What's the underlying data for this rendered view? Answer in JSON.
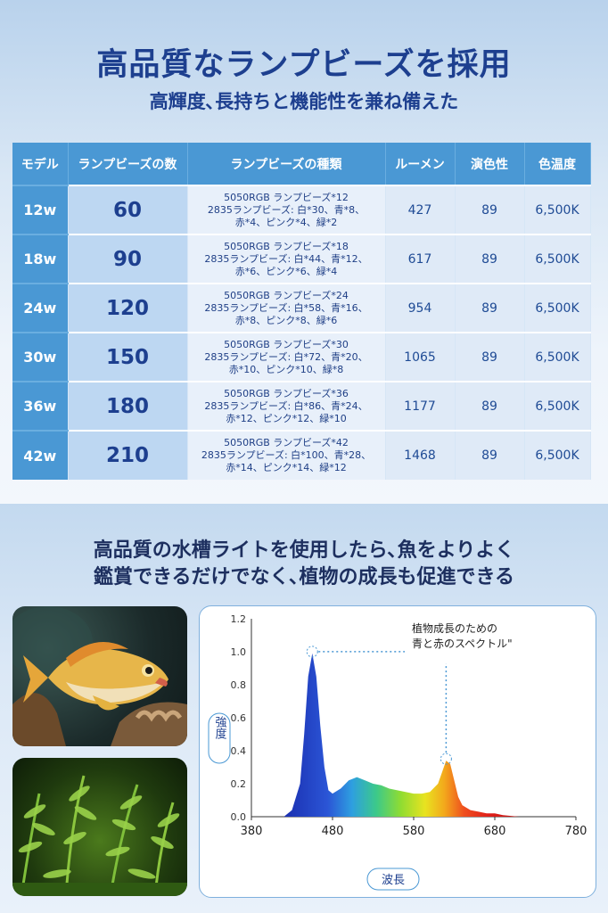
{
  "header": {
    "title": "高品質なランプビーズを採用",
    "subtitle": "高輝度､長持ちと機能性を兼ね備えた"
  },
  "table": {
    "headers": [
      "モデル",
      "ランプビーズの数",
      "ランプビーズの種類",
      "ルーメン",
      "演色性",
      "色温度"
    ],
    "rows": [
      {
        "model": "12w",
        "count": "60",
        "types": [
          "5050RGB ランプビーズ*12",
          "2835ランプビーズ: 白*30、青*8、",
          "赤*4、ピンク*4、緑*2"
        ],
        "lumen": "427",
        "cri": "89",
        "temp": "6,500K"
      },
      {
        "model": "18w",
        "count": "90",
        "types": [
          "5050RGB ランプビーズ*18",
          "2835ランプビーズ: 白*44、青*12、",
          "赤*6、ピンク*6、緑*4"
        ],
        "lumen": "617",
        "cri": "89",
        "temp": "6,500K"
      },
      {
        "model": "24w",
        "count": "120",
        "types": [
          "5050RGB ランプビーズ*24",
          "2835ランプビーズ: 白*58、青*16、",
          "赤*8、ピンク*8、緑*6"
        ],
        "lumen": "954",
        "cri": "89",
        "temp": "6,500K"
      },
      {
        "model": "30w",
        "count": "150",
        "types": [
          "5050RGB ランプビーズ*30",
          "2835ランプビーズ: 白*72、青*20、",
          "赤*10、ピンク*10、緑*8"
        ],
        "lumen": "1065",
        "cri": "89",
        "temp": "6,500K"
      },
      {
        "model": "36w",
        "count": "180",
        "types": [
          "5050RGB ランプビーズ*36",
          "2835ランプビーズ: 白*86、青*24、",
          "赤*12、ピンク*12、緑*10"
        ],
        "lumen": "1177",
        "cri": "89",
        "temp": "6,500K"
      },
      {
        "model": "42w",
        "count": "210",
        "types": [
          "5050RGB ランプビーズ*42",
          "2835ランプビーズ: 白*100、青*28、",
          "赤*14、ピンク*14、緑*12"
        ],
        "lumen": "1468",
        "cri": "89",
        "temp": "6,500K"
      }
    ]
  },
  "bottom": {
    "line1": "高品質の水槽ライトを使用したら､魚をよりよく",
    "line2": "鑑賞できるだけでなく､植物の成長も促進できる"
  },
  "colors": {
    "accent": "#4a98d4",
    "title": "#1d3f8f"
  },
  "chart_data": {
    "type": "area",
    "xlabel": "波長",
    "ylabel": "強度",
    "xlim": [
      380,
      780
    ],
    "ylim": [
      0,
      1.2
    ],
    "xticks": [
      "380",
      "480",
      "580",
      "680",
      "780"
    ],
    "yticks": [
      "0.0",
      "0.2",
      "0.4",
      "0.6",
      "0.8",
      "1.0",
      "1.2"
    ],
    "x": [
      420,
      430,
      440,
      445,
      450,
      455,
      460,
      465,
      470,
      475,
      480,
      490,
      500,
      510,
      520,
      530,
      540,
      550,
      560,
      570,
      580,
      590,
      600,
      610,
      615,
      620,
      625,
      630,
      635,
      640,
      650,
      660,
      670,
      680,
      690,
      700,
      710,
      720
    ],
    "y": [
      0.0,
      0.04,
      0.2,
      0.5,
      0.85,
      0.99,
      0.85,
      0.55,
      0.3,
      0.16,
      0.14,
      0.17,
      0.22,
      0.24,
      0.22,
      0.2,
      0.19,
      0.17,
      0.16,
      0.15,
      0.14,
      0.14,
      0.15,
      0.2,
      0.27,
      0.34,
      0.32,
      0.22,
      0.12,
      0.07,
      0.04,
      0.03,
      0.02,
      0.02,
      0.01,
      0.005,
      0.0,
      0.0
    ],
    "annotation": [
      "植物成長のための",
      "青と赤のスペクトル\""
    ]
  }
}
